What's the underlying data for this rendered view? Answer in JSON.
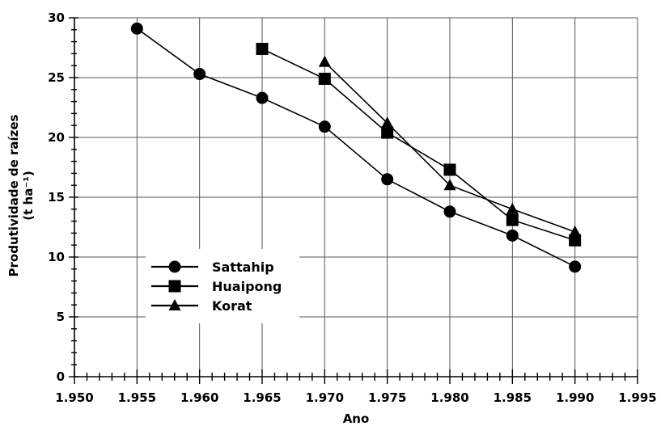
{
  "chart_data": {
    "type": "line",
    "xlabel": "Ano",
    "ylabel_line1": "Produtividade de raízes",
    "ylabel_line2": "(t ha⁻¹)",
    "xlim": [
      1950,
      1995
    ],
    "ylim": [
      0,
      30
    ],
    "x_ticks": [
      1950,
      1955,
      1960,
      1965,
      1970,
      1975,
      1980,
      1985,
      1990,
      1995
    ],
    "x_tick_labels": [
      "1.950",
      "1.955",
      "1.960",
      "1.965",
      "1.970",
      "1.975",
      "1.980",
      "1.985",
      "1.990",
      "1.995"
    ],
    "y_ticks": [
      0,
      5,
      10,
      15,
      20,
      25,
      30
    ],
    "y_tick_labels": [
      "0",
      "5",
      "10",
      "15",
      "20",
      "25",
      "30"
    ],
    "grid": true,
    "legend_position": "bottom-left",
    "series": [
      {
        "name": "Sattahip",
        "marker": "circle",
        "color": "#000000",
        "x": [
          1955,
          1960,
          1965,
          1970,
          1975,
          1980,
          1985,
          1990
        ],
        "values": [
          29.1,
          25.3,
          23.3,
          20.9,
          16.5,
          13.8,
          11.8,
          9.2
        ]
      },
      {
        "name": "Huaipong",
        "marker": "square",
        "color": "#000000",
        "x": [
          1965,
          1970,
          1975,
          1980,
          1985,
          1990
        ],
        "values": [
          27.4,
          24.9,
          20.4,
          17.3,
          13.1,
          11.4
        ]
      },
      {
        "name": "Korat",
        "marker": "triangle",
        "color": "#000000",
        "x": [
          1970,
          1975,
          1980,
          1985,
          1990
        ],
        "values": [
          26.3,
          21.2,
          16.0,
          14.0,
          12.1
        ]
      }
    ]
  }
}
